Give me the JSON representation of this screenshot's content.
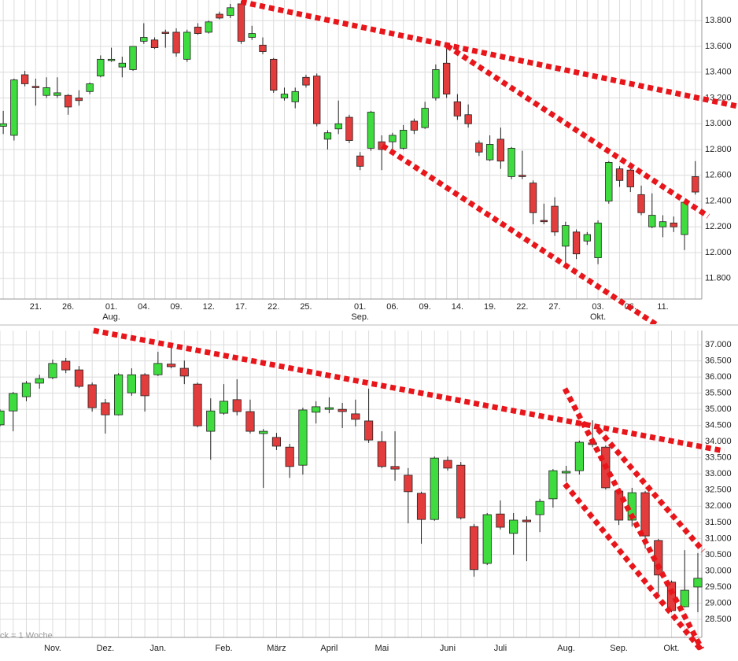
{
  "chart_data": [
    {
      "type": "candlestick",
      "categories": [
        null,
        null,
        null,
        "21.",
        null,
        null,
        "26.",
        null,
        null,
        null,
        "01.",
        null,
        null,
        "04.",
        null,
        null,
        "09.",
        null,
        null,
        "12.",
        null,
        null,
        "17.",
        null,
        null,
        "22.",
        null,
        null,
        "25.",
        null,
        null,
        null,
        null,
        "01.",
        null,
        null,
        "06.",
        null,
        null,
        "09.",
        null,
        null,
        "14.",
        null,
        null,
        "19.",
        null,
        null,
        "22.",
        null,
        null,
        "27.",
        null,
        null,
        null,
        "03.",
        null,
        null,
        "06.",
        null,
        null,
        "11.",
        null,
        null,
        null
      ],
      "sublabels": [
        null,
        null,
        null,
        null,
        null,
        null,
        null,
        null,
        null,
        null,
        "Aug.",
        null,
        null,
        null,
        null,
        null,
        null,
        null,
        null,
        null,
        null,
        null,
        null,
        null,
        null,
        null,
        null,
        null,
        null,
        null,
        null,
        null,
        null,
        "Sep.",
        null,
        null,
        null,
        null,
        null,
        null,
        null,
        null,
        null,
        null,
        null,
        null,
        null,
        null,
        null,
        null,
        null,
        null,
        null,
        null,
        null,
        "Okt.",
        null,
        null,
        null,
        null,
        null,
        null,
        null,
        null,
        null
      ],
      "open": [
        12980,
        12910,
        13380,
        13290,
        13220,
        13220,
        13220,
        13200,
        13250,
        13370,
        13490,
        13440,
        13420,
        13640,
        13650,
        13710,
        13710,
        13500,
        13750,
        13710,
        13850,
        13840,
        13930,
        13670,
        13610,
        13500,
        13200,
        13170,
        13360,
        13370,
        12880,
        12960,
        13050,
        12750,
        12810,
        12860,
        12860,
        12810,
        13020,
        12970,
        13200,
        13470,
        13170,
        13070,
        12850,
        12720,
        12880,
        12590,
        12600,
        12540,
        12250,
        12360,
        12050,
        12160,
        12090,
        11960,
        12400,
        12650,
        12640,
        12450,
        12200,
        12200,
        12230,
        12140,
        12590
      ],
      "high": [
        13100,
        13350,
        13410,
        13350,
        13360,
        13360,
        13230,
        13260,
        13320,
        13530,
        13590,
        13520,
        13600,
        13780,
        13670,
        13730,
        13740,
        13730,
        13780,
        13800,
        13870,
        13930,
        13950,
        13760,
        13670,
        13510,
        13280,
        13280,
        13380,
        13390,
        12950,
        13180,
        13070,
        12780,
        13100,
        12910,
        12930,
        12990,
        13040,
        13170,
        13460,
        13590,
        13230,
        13150,
        12870,
        12910,
        12970,
        12820,
        12790,
        12560,
        12380,
        12430,
        12240,
        12180,
        12160,
        12250,
        12710,
        12670,
        12650,
        12520,
        12460,
        12290,
        12280,
        12400,
        12710
      ],
      "low": [
        12920,
        12870,
        13290,
        13140,
        13200,
        13200,
        13070,
        13140,
        13230,
        13360,
        13480,
        13360,
        13410,
        13620,
        13580,
        13590,
        13520,
        13480,
        13690,
        13700,
        13810,
        13820,
        13620,
        13650,
        13540,
        13240,
        13180,
        13120,
        13280,
        12980,
        12800,
        12920,
        12850,
        12640,
        12790,
        12640,
        12800,
        12800,
        12920,
        12960,
        13180,
        13200,
        13030,
        12970,
        12750,
        12710,
        12650,
        12570,
        12570,
        12220,
        12220,
        12130,
        11920,
        11950,
        12060,
        11910,
        12380,
        12510,
        12470,
        12290,
        12190,
        12120,
        12160,
        12020,
        12450
      ],
      "close": [
        13000,
        13340,
        13310,
        13280,
        13280,
        13240,
        13130,
        13180,
        13310,
        13500,
        13500,
        13470,
        13600,
        13670,
        13590,
        13700,
        13550,
        13710,
        13700,
        13790,
        13820,
        13900,
        13640,
        13700,
        13560,
        13260,
        13230,
        13250,
        13300,
        13000,
        12930,
        13000,
        12870,
        12670,
        13090,
        12800,
        12910,
        12950,
        12950,
        13120,
        13420,
        13230,
        13060,
        13000,
        12780,
        12840,
        12710,
        12810,
        12590,
        12310,
        12240,
        12160,
        12210,
        11990,
        12140,
        12230,
        12700,
        12560,
        12510,
        12310,
        12290,
        12240,
        12200,
        12390,
        12470
      ],
      "up_color": "#3fdc3f",
      "down_color": "#e23c3c",
      "trend_color": "#e8161b",
      "trendlines": [
        {
          "x": [
            22,
            67.95
          ],
          "y": [
            13946,
            13135
          ]
        },
        {
          "x": [
            41.03,
            65.2
          ],
          "y": [
            13605,
            12282
          ]
        },
        {
          "x": [
            35.06,
            61.2
          ],
          "y": [
            12830,
            11397
          ]
        }
      ],
      "xlim": [
        -0.3,
        64.6
      ],
      "ylim": [
        11640,
        13960
      ],
      "yticks": [
        {
          "value": 11800,
          "label": "11.800"
        },
        {
          "value": 12000,
          "label": "12.000"
        },
        {
          "value": 12200,
          "label": "12.200"
        },
        {
          "value": 12400,
          "label": "12.400"
        },
        {
          "value": 12600,
          "label": "12.600"
        },
        {
          "value": 12800,
          "label": "12.800"
        },
        {
          "value": 13000,
          "label": "13.000"
        },
        {
          "value": 13200,
          "label": "13.200"
        },
        {
          "value": 13400,
          "label": "13.400"
        },
        {
          "value": 13600,
          "label": "13.600"
        },
        {
          "value": 13800,
          "label": "13.800"
        }
      ],
      "grid": true
    },
    {
      "type": "candlestick",
      "categories": [
        null,
        null,
        null,
        null,
        "Nov.",
        null,
        null,
        null,
        "Dez.",
        null,
        null,
        null,
        "Jan.",
        null,
        null,
        null,
        null,
        "Feb.",
        null,
        null,
        null,
        "März",
        null,
        null,
        null,
        "April",
        null,
        null,
        null,
        "Mai",
        null,
        null,
        null,
        null,
        "Juni",
        null,
        null,
        null,
        "Juli",
        null,
        null,
        null,
        null,
        "Aug.",
        null,
        null,
        null,
        "Sep.",
        null,
        null,
        null,
        "Okt.",
        null,
        null
      ],
      "open": [
        34520,
        34950,
        35390,
        35810,
        35980,
        36490,
        36220,
        35760,
        35200,
        34830,
        35510,
        36070,
        36070,
        36400,
        36270,
        35780,
        34320,
        34880,
        35300,
        34930,
        34250,
        34130,
        33830,
        33270,
        34910,
        35000,
        35000,
        34860,
        34640,
        34000,
        33230,
        32960,
        32400,
        31590,
        33420,
        33270,
        31370,
        30230,
        31760,
        31160,
        31570,
        31740,
        32230,
        33030,
        33100,
        33960,
        33830,
        32470,
        31570,
        32420,
        30940,
        29650,
        28890,
        29500
      ],
      "high": [
        35000,
        35540,
        35880,
        36070,
        36540,
        36590,
        36340,
        35830,
        35320,
        36120,
        36270,
        36120,
        36780,
        36950,
        36510,
        35830,
        35340,
        35780,
        35930,
        35300,
        34390,
        34270,
        33930,
        35050,
        35250,
        35370,
        35200,
        35300,
        35640,
        34320,
        34320,
        33180,
        32450,
        33540,
        33540,
        33370,
        31450,
        31790,
        32180,
        31790,
        31690,
        32230,
        33150,
        33250,
        34030,
        34660,
        33880,
        32520,
        32570,
        32470,
        30990,
        29700,
        30640,
        30550
      ],
      "low": [
        34470,
        34320,
        35250,
        35640,
        35930,
        36120,
        35660,
        34930,
        34250,
        34810,
        35420,
        34930,
        36030,
        36270,
        35780,
        34440,
        33440,
        34830,
        34810,
        34250,
        32570,
        33740,
        32880,
        32980,
        34560,
        34880,
        34420,
        34470,
        33960,
        33180,
        32790,
        31470,
        30840,
        31550,
        33100,
        31590,
        29820,
        30180,
        31280,
        30500,
        30300,
        31200,
        31960,
        32760,
        32980,
        33830,
        32520,
        31420,
        31370,
        30690,
        29160,
        28720,
        28870,
        28720
      ],
      "close": [
        34950,
        35490,
        35810,
        35950,
        36420,
        36220,
        35710,
        35050,
        34830,
        36070,
        36070,
        35420,
        36420,
        36320,
        36030,
        34490,
        34950,
        35250,
        34930,
        34320,
        34320,
        33860,
        33230,
        34980,
        35080,
        35050,
        34930,
        34690,
        34050,
        33230,
        33150,
        32450,
        31590,
        33490,
        33180,
        31640,
        30040,
        31740,
        31350,
        31570,
        31520,
        32150,
        33100,
        33080,
        33980,
        33910,
        32570,
        31570,
        32420,
        31080,
        29870,
        28770,
        29400,
        29770
      ],
      "up_color": "#3fdc3f",
      "down_color": "#e23c3c",
      "trend_color": "#e8161b",
      "trendlines": [
        {
          "x": [
            7.1,
            55
          ],
          "y": [
            37440,
            33710
          ]
        },
        {
          "x": [
            42.9,
            53.3
          ],
          "y": [
            35640,
            27580
          ]
        },
        {
          "x": [
            42.9,
            53.2
          ],
          "y": [
            32690,
            27580
          ]
        },
        {
          "x": [
            45.4,
            53.4
          ],
          "y": [
            34390,
            30620
          ]
        }
      ],
      "annotation": "ck = 1 Woche",
      "xlim": [
        0,
        53.3
      ],
      "ylim": [
        27940,
        37440
      ],
      "yticks": [
        {
          "value": 28500,
          "label": "28.500"
        },
        {
          "value": 29000,
          "label": "29.000"
        },
        {
          "value": 29500,
          "label": "29.500"
        },
        {
          "value": 30000,
          "label": "30.000"
        },
        {
          "value": 30500,
          "label": "30.500"
        },
        {
          "value": 31000,
          "label": "31.000"
        },
        {
          "value": 31500,
          "label": "31.500"
        },
        {
          "value": 32000,
          "label": "32.000"
        },
        {
          "value": 32500,
          "label": "32.500"
        },
        {
          "value": 33000,
          "label": "33.000"
        },
        {
          "value": 33500,
          "label": "33.500"
        },
        {
          "value": 34000,
          "label": "34.000"
        },
        {
          "value": 34500,
          "label": "34.500"
        },
        {
          "value": 35000,
          "label": "35.000"
        },
        {
          "value": 35500,
          "label": "35.500"
        },
        {
          "value": 36000,
          "label": "36.000"
        },
        {
          "value": 36500,
          "label": "36.500"
        },
        {
          "value": 37000,
          "label": "37.000"
        }
      ],
      "grid": true
    }
  ]
}
